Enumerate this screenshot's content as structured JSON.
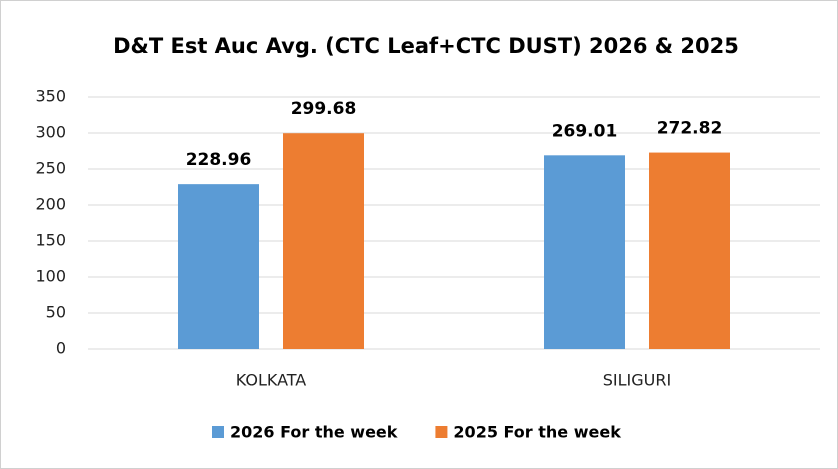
{
  "chart_data": {
    "type": "bar",
    "title": "D&T Est Auc Avg. (CTC Leaf+CTC DUST) 2026 & 2025",
    "categories": [
      "KOLKATA",
      "SILIGURI"
    ],
    "series": [
      {
        "name": "2026 For the week",
        "color": "#5b9bd5",
        "values": [
          228.96,
          269.01
        ]
      },
      {
        "name": "2025 For the week",
        "color": "#ed7d31",
        "values": [
          299.68,
          272.82
        ]
      }
    ],
    "ylim": [
      0,
      350
    ],
    "yticks": [
      0,
      50,
      100,
      150,
      200,
      250,
      300,
      350
    ],
    "grid": true,
    "legend": "bottom"
  }
}
